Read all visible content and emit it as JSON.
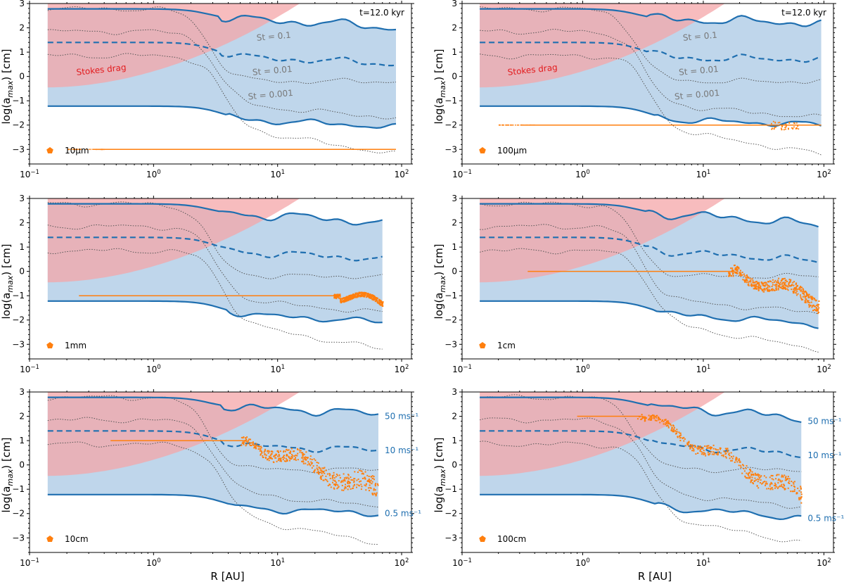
{
  "chart_data": [
    {
      "type": "line",
      "panel": "top-left",
      "particle_label": "10μm",
      "time_label": "t=12.0 kyr",
      "stokes_label": "Stokes drag",
      "st_labels": [
        "St = 0.1",
        "St = 0.01",
        "St = 0.001"
      ],
      "r_max": 90,
      "end_upper": 1.9,
      "end_mid": 0.5,
      "end_lower": -2.1,
      "dust_shape": "flat",
      "dust_level": -3.0,
      "ylabel": "log(a_max) [cm]",
      "xlabel": ""
    },
    {
      "type": "line",
      "panel": "top-right",
      "particle_label": "100μm",
      "time_label": "t=12.0 kyr",
      "stokes_label": "Stokes drag",
      "st_labels": [
        "St = 0.1",
        "St = 0.01",
        "St = 0.001"
      ],
      "r_max": 95,
      "end_upper": 2.1,
      "end_mid": 0.7,
      "end_lower": -2.0,
      "dust_shape": "flat",
      "dust_level": -2.0,
      "ylabel": "log(a_max) [cm]",
      "xlabel": ""
    },
    {
      "type": "line",
      "panel": "middle-left",
      "particle_label": "1mm",
      "r_max": 70,
      "end_upper": 1.9,
      "end_mid": 0.5,
      "end_lower": -2.1,
      "dust_shape": "flat-tail",
      "dust_level": -1.0,
      "ylabel": "log(a_max) [cm]",
      "xlabel": ""
    },
    {
      "type": "line",
      "panel": "middle-right",
      "particle_label": "1cm",
      "r_max": 90,
      "end_upper": 1.8,
      "end_mid": 0.4,
      "end_lower": -2.2,
      "dust_shape": "drop",
      "dust_level": 0.0,
      "ylabel": "log(a_max) [cm]",
      "xlabel": ""
    },
    {
      "type": "line",
      "panel": "bottom-left",
      "particle_label": "10cm",
      "velocity_labels": [
        "50 ms⁻¹",
        "10 ms⁻¹",
        "0.5 ms⁻¹"
      ],
      "r_max": 65,
      "end_upper": 2.0,
      "end_mid": 0.6,
      "end_lower": -2.0,
      "dust_shape": "drop-wide",
      "dust_level": 1.0,
      "ylabel": "log(a_max) [cm]",
      "xlabel": "R [AU]"
    },
    {
      "type": "line",
      "panel": "bottom-right",
      "particle_label": "100cm",
      "velocity_labels": [
        "50 ms⁻¹",
        "10 ms⁻¹",
        "0.5 ms⁻¹"
      ],
      "r_max": 65,
      "end_upper": 1.8,
      "end_mid": 0.4,
      "end_lower": -2.2,
      "dust_shape": "drop-steep",
      "dust_level": 2.0,
      "ylabel": "log(a_max) [cm]",
      "xlabel": "R [AU]"
    }
  ],
  "axes": {
    "xlim": [
      0.1,
      120
    ],
    "ylim": [
      -3.6,
      3
    ],
    "y_ticks": [
      "3",
      "2",
      "1",
      "0",
      "-1",
      "-2",
      "-3"
    ],
    "x_ticks": [
      {
        "base": "10",
        "exp": "-1"
      },
      {
        "base": "10",
        "exp": "0"
      },
      {
        "base": "10",
        "exp": "1"
      },
      {
        "base": "10",
        "exp": "2"
      }
    ]
  },
  "colors": {
    "stokes": "#e31a1c",
    "stokes_fill": "#f4a6a8",
    "frag": "#1f6fb0",
    "frag_fill": "#a9c8e4",
    "dust": "#ff7f0e",
    "st_lines": "#555555"
  }
}
